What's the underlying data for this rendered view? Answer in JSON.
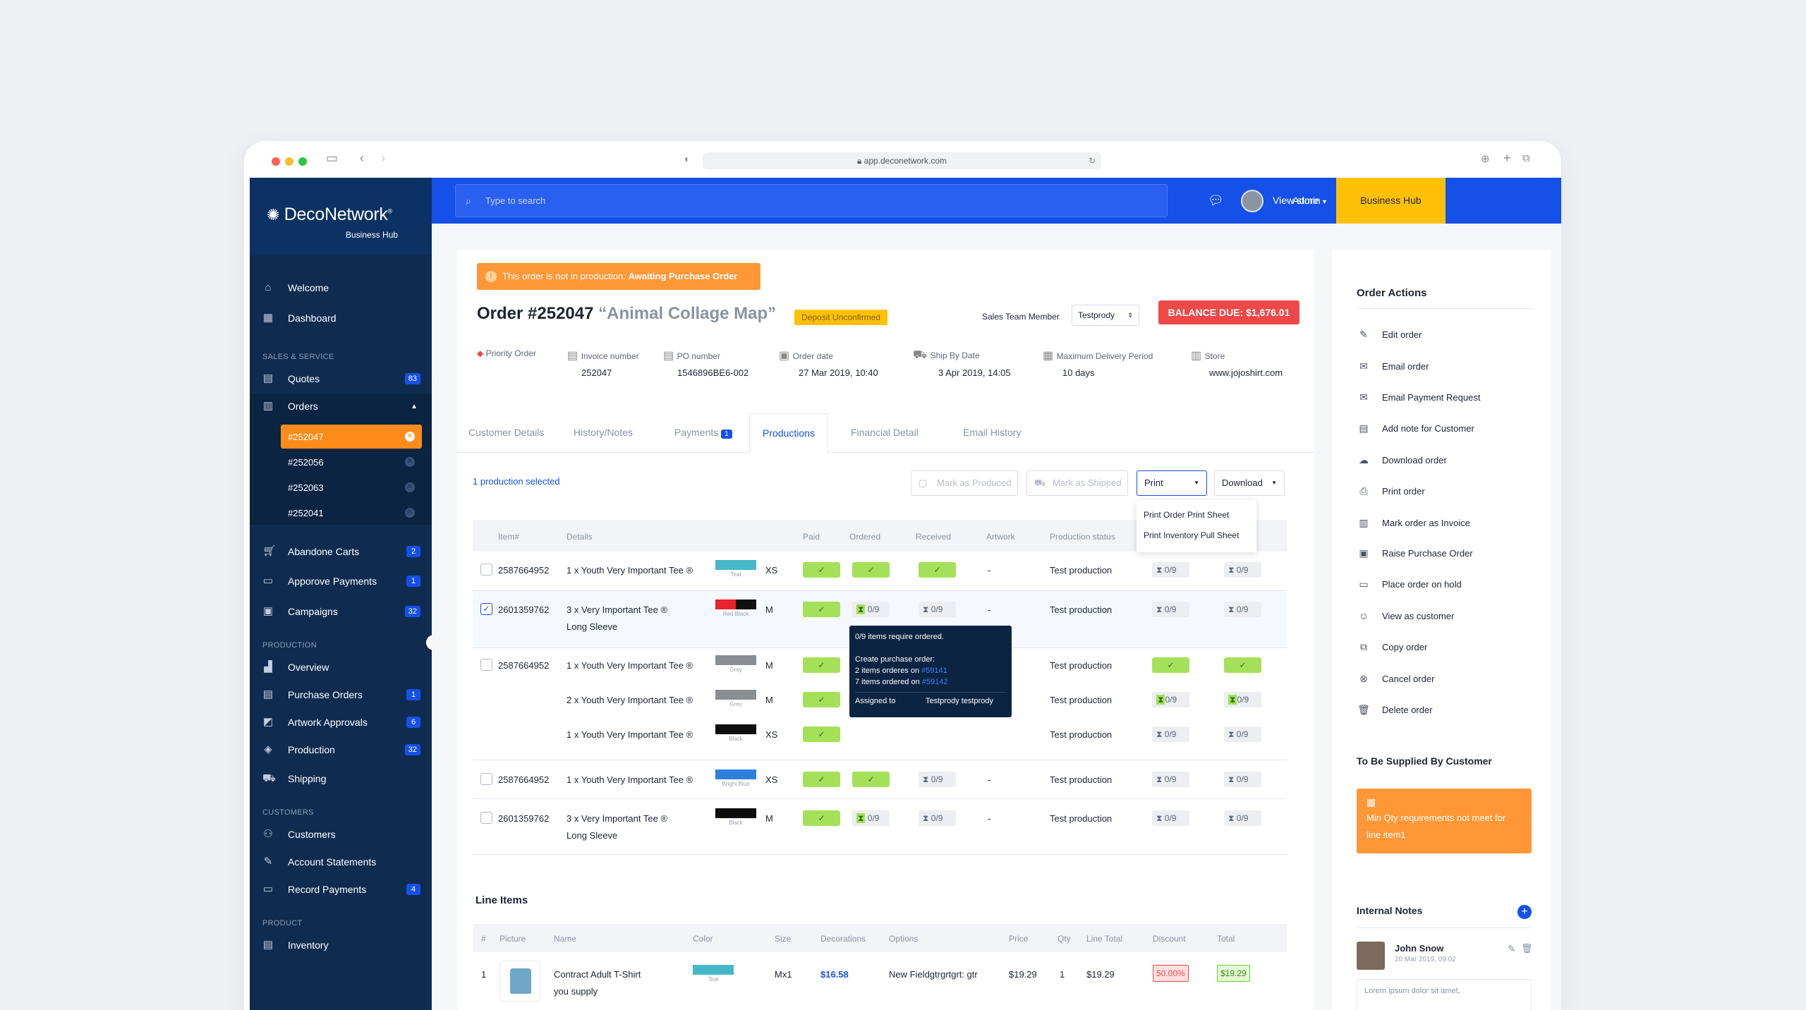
{
  "browser": {
    "url": "app.deconetwork.com"
  },
  "sidebar": {
    "logo": "DecoNetwork",
    "logo_sub": "Business Hub",
    "welcome": "Welcome",
    "dashboard": "Dashboard",
    "sec_sales": "SALES & SERVICE",
    "quotes": "Quotes",
    "quotes_count": "83",
    "orders": "Orders",
    "order_items": [
      "#252047",
      "#252056",
      "#252063",
      "#252041"
    ],
    "abandoned": "Abandone Carts",
    "abandoned_count": "2",
    "approve": "Apporove Payments",
    "approve_count": "1",
    "campaigns": "Campaigns",
    "campaigns_count": "32",
    "sec_production": "PRODUCTION",
    "overview": "Overview",
    "purchase_orders": "Purchase Orders",
    "purchase_orders_count": "1",
    "artwork": "Artwork Approvals",
    "artwork_count": "6",
    "production": "Production",
    "production_count": "32",
    "shipping": "Shipping",
    "sec_customers": "CUSTOMERS",
    "customers": "Customers",
    "statements": "Account Statements",
    "record_payments": "Record Payments",
    "record_payments_count": "4",
    "sec_product": "PRODUCT",
    "inventory": "Inventory"
  },
  "topbar": {
    "search_placeholder": "Type to search",
    "view_store": "View store",
    "admin": "Admin",
    "business_hub": "Business Hub"
  },
  "order": {
    "alert_prefix": "This order is not in production:",
    "alert_status": "Awaiting Purchase Order",
    "title": "Order #252047",
    "name": "“Animal Collage Map”",
    "deposit_badge": "Deposit Unconfirmed",
    "sales_label": "Sales Team Member",
    "sales_value": "Testprody",
    "balance": "BALANCE DUE: $1,676.01",
    "meta": {
      "priority": "Priority Order",
      "invoice_label": "Invoice number",
      "invoice_value": "252047",
      "po_label": "PO number",
      "po_value": "1546896BE6-002",
      "order_date_label": "Order date",
      "order_date_value": "27 Mar 2019, 10:40",
      "ship_label": "Ship By Date",
      "ship_value": "3 Apr 2019, 14:05",
      "delivery_label": "Maximum Delivery Period",
      "delivery_value": "10 days",
      "store_label": "Store",
      "store_value": "www.jojoshirt.com"
    },
    "tabs": [
      "Customer Details",
      "History/Notes",
      "Payments",
      "Productions",
      "Financial Detail",
      "Email History"
    ],
    "payments_badge": "1",
    "selected_text": "1 production selected",
    "btn_produced": "Mark as Produced",
    "btn_shipped": "Mark as Shipped",
    "btn_print": "Print",
    "btn_download": "Download",
    "print_menu": [
      "Print Order Print Sheet",
      "Print Inventory Pull Sheet"
    ],
    "prod_headers": [
      "Item#",
      "Details",
      "Paid",
      "Ordered",
      "Received",
      "Artwork",
      "Production status"
    ],
    "rows": [
      {
        "item": "2587664952",
        "detail": "1 x Youth Very Important Tee ®",
        "detail2": "",
        "size": "XS",
        "color": "Teal",
        "status": "Test production",
        "p1": "0/9",
        "p2": "0/9"
      },
      {
        "item": "2601359762",
        "detail": "3 x Very Important Tee ®",
        "detail2": "Long Sleeve",
        "size": "M",
        "color": "Red Black",
        "ordered": "0/9",
        "received": "0/9",
        "status": "Test production",
        "p1": "0/9",
        "p2": "0/9"
      },
      {
        "item": "2587664952",
        "detail": "1 x Youth Very Important Tee ®",
        "detail2": "",
        "size": "M",
        "color": "Grey",
        "status": "Test production"
      },
      {
        "item": "",
        "detail": "2 x Youth Very Important Tee ®",
        "detail2": "",
        "size": "M",
        "color": "Grey",
        "status": "Test production",
        "p1": "0/9",
        "p2": "0/9"
      },
      {
        "item": "",
        "detail": "1 x Youth Very Important Tee ®",
        "detail2": "",
        "size": "XS",
        "color": "Black",
        "status": "Test production",
        "p1": "0/9",
        "p2": "0/9"
      },
      {
        "item": "2587664952",
        "detail": "1 x Youth Very Important Tee ®",
        "detail2": "",
        "size": "XS",
        "color": "Bright Blue",
        "received": "0/9",
        "status": "Test production",
        "p1": "0/9",
        "p2": "0/9"
      },
      {
        "item": "2601359762",
        "detail": "3 x Very Important Tee ®",
        "detail2": "Long Sleeve",
        "size": "M",
        "color": "Black",
        "ordered": "0/9",
        "received": "0/9",
        "status": "Test production",
        "p1": "0/9",
        "p2": "0/9"
      }
    ],
    "dash": "-",
    "tooltip": {
      "line1": "0/9 items require ordered.",
      "line2": "Create purchase order:",
      "line3a": "2 items orderes on",
      "po1": "#59141",
      "line4a": "7 items ordered on",
      "po2": "#59142",
      "assigned_label": "Assigned to",
      "assigned_value": "Testprody testprody"
    },
    "line_items_title": "Line Items",
    "li_headers": [
      "#",
      "Picture",
      "Name",
      "Color",
      "Size",
      "Decorations",
      "Options",
      "Price",
      "Qty",
      "Line Total",
      "Discount",
      "Total"
    ],
    "line_item": {
      "num": "1",
      "name": "Contract Adult T-Shirt",
      "name2": "you supply",
      "color": "Teal",
      "size": "Mx1",
      "decorations": "$16.58",
      "options": "New Fieldgtrgrtgrt: gtr",
      "price": "$19.29",
      "qty": "1",
      "line_total": "$19.29",
      "discount": "50.00%",
      "total": "$19.29"
    }
  },
  "right_panel": {
    "actions_title": "Order Actions",
    "actions": [
      {
        "label": "Edit order",
        "icon": "pencil-icon"
      },
      {
        "label": "Email order",
        "icon": "mail-icon"
      },
      {
        "label": "Email Payment Request",
        "icon": "mail-dollar-icon"
      },
      {
        "label": "Add note for Customer",
        "icon": "note-icon"
      },
      {
        "label": "Download order",
        "icon": "cloud-download-icon"
      },
      {
        "label": "Print order",
        "icon": "printer-icon"
      },
      {
        "label": "Mark order as Invoice",
        "icon": "invoice-icon"
      },
      {
        "label": "Raise Purchase Order",
        "icon": "purchase-icon"
      },
      {
        "label": "Place order on hold",
        "icon": "hold-icon"
      },
      {
        "label": "View as customer",
        "icon": "user-icon"
      },
      {
        "label": "Copy order",
        "icon": "copy-icon"
      },
      {
        "label": "Cancel order",
        "icon": "cancel-icon"
      },
      {
        "label": "Delete order",
        "icon": "trash-icon"
      }
    ],
    "supplied_title": "To Be Supplied By Customer",
    "supplied_note": "Min Qty requirements not meet for line item1",
    "notes_title": "Internal Notes",
    "note_author": "John Snow",
    "note_date": "20 Mar 2019, 09:02",
    "note_text": "Lorem ipsum dolor sit amet,"
  },
  "colors": {
    "brand_blue": "#1550e8",
    "sidebar": "#0f2c50",
    "accent_orange": "#ff9736",
    "business_hub": "#ffc107",
    "paid_green": "#a5e05a",
    "balance_red": "#ef4848"
  }
}
